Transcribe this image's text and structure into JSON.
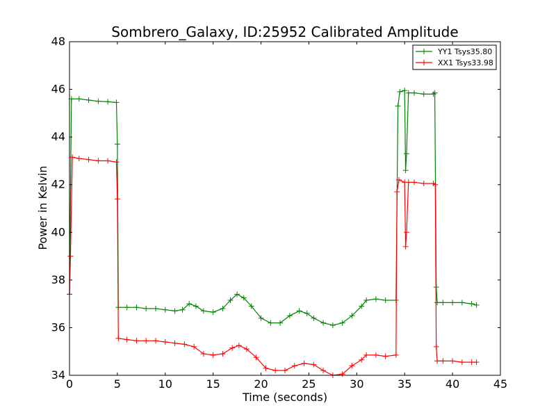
{
  "chart_data": {
    "type": "line",
    "title": "Sombrero_Galaxy, ID:25952 Calibrated Amplitude",
    "xlabel": "Time (seconds)",
    "ylabel": "Power in Kelvin",
    "xlim": [
      0,
      45
    ],
    "ylim": [
      34,
      48
    ],
    "xticks": [
      "0",
      "5",
      "10",
      "15",
      "20",
      "25",
      "30",
      "35",
      "40",
      "45"
    ],
    "yticks": [
      "34",
      "36",
      "38",
      "40",
      "42",
      "44",
      "46",
      "48"
    ],
    "grid": false,
    "legend_position": "top-right",
    "marker": "plus",
    "series": [
      {
        "name": "YY1 Tsys35.80",
        "color": "#008000",
        "points": [
          [
            0.0,
            37.4
          ],
          [
            0.2,
            45.6
          ],
          [
            1.0,
            45.6
          ],
          [
            2.0,
            45.55
          ],
          [
            3.0,
            45.5
          ],
          [
            4.0,
            45.48
          ],
          [
            4.9,
            45.45
          ],
          [
            5.0,
            43.7
          ],
          [
            5.1,
            36.85
          ],
          [
            6.0,
            36.85
          ],
          [
            7.0,
            36.85
          ],
          [
            8.0,
            36.8
          ],
          [
            9.0,
            36.8
          ],
          [
            10.0,
            36.75
          ],
          [
            11.0,
            36.7
          ],
          [
            11.8,
            36.75
          ],
          [
            12.5,
            37.0
          ],
          [
            13.2,
            36.9
          ],
          [
            14.0,
            36.7
          ],
          [
            15.0,
            36.65
          ],
          [
            16.0,
            36.8
          ],
          [
            16.8,
            37.15
          ],
          [
            17.5,
            37.4
          ],
          [
            18.2,
            37.25
          ],
          [
            19.0,
            36.9
          ],
          [
            20.0,
            36.4
          ],
          [
            21.0,
            36.2
          ],
          [
            22.0,
            36.2
          ],
          [
            23.0,
            36.5
          ],
          [
            24.0,
            36.7
          ],
          [
            24.8,
            36.6
          ],
          [
            25.5,
            36.4
          ],
          [
            26.5,
            36.2
          ],
          [
            27.5,
            36.1
          ],
          [
            28.5,
            36.2
          ],
          [
            29.5,
            36.5
          ],
          [
            30.5,
            36.9
          ],
          [
            31.0,
            37.15
          ],
          [
            32.0,
            37.2
          ],
          [
            33.0,
            37.15
          ],
          [
            34.1,
            37.15
          ],
          [
            34.3,
            45.3
          ],
          [
            34.5,
            45.9
          ],
          [
            35.0,
            45.95
          ],
          [
            35.1,
            42.6
          ],
          [
            35.2,
            43.3
          ],
          [
            35.4,
            45.85
          ],
          [
            36.0,
            45.85
          ],
          [
            37.0,
            45.8
          ],
          [
            38.0,
            45.8
          ],
          [
            38.15,
            45.85
          ],
          [
            38.3,
            37.7
          ],
          [
            38.4,
            37.05
          ],
          [
            39.0,
            37.05
          ],
          [
            40.0,
            37.05
          ],
          [
            41.0,
            37.05
          ],
          [
            42.0,
            37.0
          ],
          [
            42.5,
            36.95
          ]
        ]
      },
      {
        "name": "XX1 Tsys33.98",
        "color": "#ff0000",
        "points": [
          [
            0.0,
            37.4
          ],
          [
            0.1,
            39.0
          ],
          [
            0.3,
            43.15
          ],
          [
            1.0,
            43.1
          ],
          [
            2.0,
            43.05
          ],
          [
            3.0,
            43.0
          ],
          [
            4.0,
            43.0
          ],
          [
            4.9,
            42.95
          ],
          [
            5.0,
            41.4
          ],
          [
            5.1,
            35.55
          ],
          [
            6.0,
            35.5
          ],
          [
            7.0,
            35.45
          ],
          [
            8.0,
            35.45
          ],
          [
            9.0,
            35.45
          ],
          [
            10.0,
            35.4
          ],
          [
            11.0,
            35.35
          ],
          [
            12.0,
            35.3
          ],
          [
            13.0,
            35.2
          ],
          [
            14.0,
            34.9
          ],
          [
            15.0,
            34.85
          ],
          [
            16.0,
            34.9
          ],
          [
            17.0,
            35.15
          ],
          [
            17.7,
            35.25
          ],
          [
            18.5,
            35.1
          ],
          [
            19.5,
            34.75
          ],
          [
            20.5,
            34.3
          ],
          [
            21.5,
            34.2
          ],
          [
            22.5,
            34.2
          ],
          [
            23.5,
            34.4
          ],
          [
            24.5,
            34.5
          ],
          [
            25.5,
            34.45
          ],
          [
            26.5,
            34.2
          ],
          [
            27.5,
            34.0
          ],
          [
            28.5,
            34.05
          ],
          [
            29.5,
            34.4
          ],
          [
            30.5,
            34.65
          ],
          [
            31.0,
            34.85
          ],
          [
            32.0,
            34.85
          ],
          [
            33.0,
            34.8
          ],
          [
            34.1,
            34.85
          ],
          [
            34.2,
            41.7
          ],
          [
            34.4,
            42.2
          ],
          [
            35.0,
            42.1
          ],
          [
            35.1,
            39.4
          ],
          [
            35.2,
            40.0
          ],
          [
            35.4,
            42.1
          ],
          [
            36.0,
            42.1
          ],
          [
            37.0,
            42.05
          ],
          [
            38.0,
            42.05
          ],
          [
            38.2,
            42.0
          ],
          [
            38.3,
            35.2
          ],
          [
            38.4,
            34.6
          ],
          [
            39.0,
            34.6
          ],
          [
            40.0,
            34.6
          ],
          [
            41.0,
            34.55
          ],
          [
            42.0,
            34.55
          ],
          [
            42.5,
            34.55
          ]
        ]
      }
    ]
  }
}
